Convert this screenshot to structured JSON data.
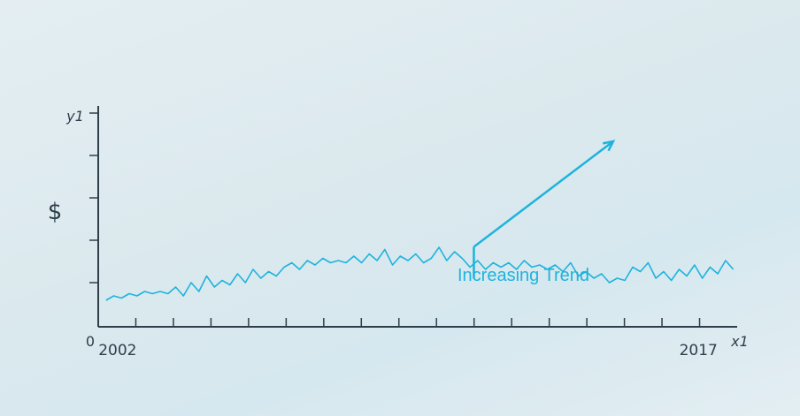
{
  "chart_data": {
    "type": "line",
    "title": "",
    "ylabel": "y1",
    "xlabel": "x1",
    "y_unit_symbol": "$",
    "origin_label": "0",
    "x_tick_labels": [
      {
        "label": "2002",
        "x": 2002
      },
      {
        "label": "2017",
        "x": 2017
      }
    ],
    "xlim": [
      2001.5,
      2018
    ],
    "ylim": [
      0,
      100
    ],
    "yticks_count": 5,
    "xticks_count": 16,
    "grid": false,
    "annotation": {
      "text": "Increasing Trend",
      "arrow_from_x": 2011.2,
      "arrow_from_y": 25,
      "arrow_to_x": 2014.8,
      "arrow_to_y": 84
    },
    "colors": {
      "line": "#1eb3dd",
      "axis": "#2e3e4a",
      "annotation": "#1eb3dd"
    },
    "series": [
      {
        "values": [
          [
            2001.7,
            12
          ],
          [
            2001.9,
            14
          ],
          [
            2002.1,
            13
          ],
          [
            2002.3,
            15
          ],
          [
            2002.5,
            14
          ],
          [
            2002.7,
            16
          ],
          [
            2002.9,
            15
          ],
          [
            2003.1,
            16
          ],
          [
            2003.3,
            15
          ],
          [
            2003.5,
            18
          ],
          [
            2003.7,
            14
          ],
          [
            2003.9,
            20
          ],
          [
            2004.1,
            16
          ],
          [
            2004.3,
            23
          ],
          [
            2004.5,
            18
          ],
          [
            2004.7,
            21
          ],
          [
            2004.9,
            19
          ],
          [
            2005.1,
            24
          ],
          [
            2005.3,
            20
          ],
          [
            2005.5,
            26
          ],
          [
            2005.7,
            22
          ],
          [
            2005.9,
            25
          ],
          [
            2006.1,
            23
          ],
          [
            2006.3,
            27
          ],
          [
            2006.5,
            29
          ],
          [
            2006.7,
            26
          ],
          [
            2006.9,
            30
          ],
          [
            2007.1,
            28
          ],
          [
            2007.3,
            31
          ],
          [
            2007.5,
            29
          ],
          [
            2007.7,
            30
          ],
          [
            2007.9,
            29
          ],
          [
            2008.1,
            32
          ],
          [
            2008.3,
            29
          ],
          [
            2008.5,
            33
          ],
          [
            2008.7,
            30
          ],
          [
            2008.9,
            35
          ],
          [
            2009.1,
            28
          ],
          [
            2009.3,
            32
          ],
          [
            2009.5,
            30
          ],
          [
            2009.7,
            33
          ],
          [
            2009.9,
            29
          ],
          [
            2010.1,
            31
          ],
          [
            2010.3,
            36
          ],
          [
            2010.5,
            30
          ],
          [
            2010.7,
            34
          ],
          [
            2010.9,
            31
          ],
          [
            2011.1,
            27
          ],
          [
            2011.3,
            30
          ],
          [
            2011.5,
            26
          ],
          [
            2011.7,
            29
          ],
          [
            2011.9,
            27
          ],
          [
            2012.1,
            29
          ],
          [
            2012.3,
            26
          ],
          [
            2012.5,
            30
          ],
          [
            2012.7,
            27
          ],
          [
            2012.9,
            28
          ],
          [
            2013.1,
            26
          ],
          [
            2013.3,
            28
          ],
          [
            2013.5,
            25
          ],
          [
            2013.7,
            29
          ],
          [
            2013.9,
            23
          ],
          [
            2014.1,
            25
          ],
          [
            2014.3,
            22
          ],
          [
            2014.5,
            24
          ],
          [
            2014.7,
            20
          ],
          [
            2014.9,
            22
          ],
          [
            2015.1,
            21
          ],
          [
            2015.3,
            27
          ],
          [
            2015.5,
            25
          ],
          [
            2015.7,
            29
          ],
          [
            2015.9,
            22
          ],
          [
            2016.1,
            25
          ],
          [
            2016.3,
            21
          ],
          [
            2016.5,
            26
          ],
          [
            2016.7,
            23
          ],
          [
            2016.9,
            28
          ],
          [
            2017.1,
            22
          ],
          [
            2017.3,
            27
          ],
          [
            2017.5,
            24
          ],
          [
            2017.7,
            30
          ],
          [
            2017.9,
            26
          ]
        ]
      }
    ]
  }
}
